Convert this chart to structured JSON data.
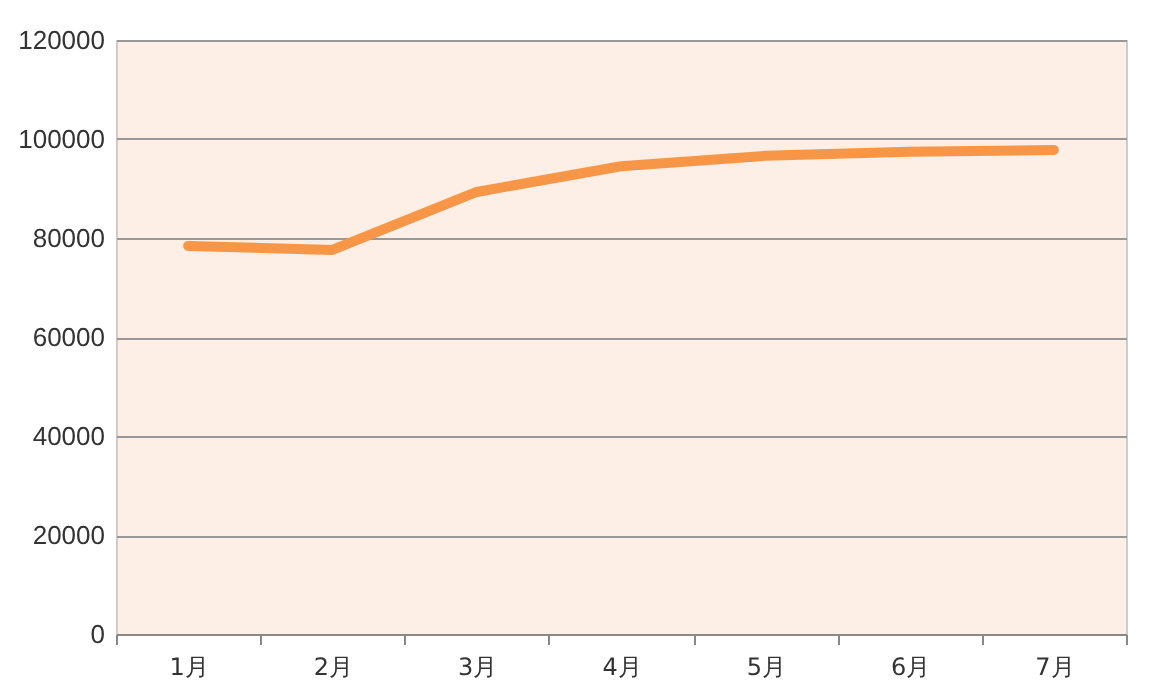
{
  "chart_data": {
    "type": "line",
    "categories": [
      "1月",
      "2月",
      "3月",
      "4月",
      "5月",
      "6月",
      "7月"
    ],
    "series": [
      {
        "color": "#f79646",
        "values": [
          78400,
          77600,
          89300,
          94500,
          96600,
          97400,
          97800
        ]
      }
    ],
    "ylim": [
      0,
      120000
    ],
    "yticks": [
      0,
      20000,
      40000,
      60000,
      80000,
      100000,
      120000
    ],
    "grid": "y",
    "marker": "none",
    "line_style": "solid"
  }
}
